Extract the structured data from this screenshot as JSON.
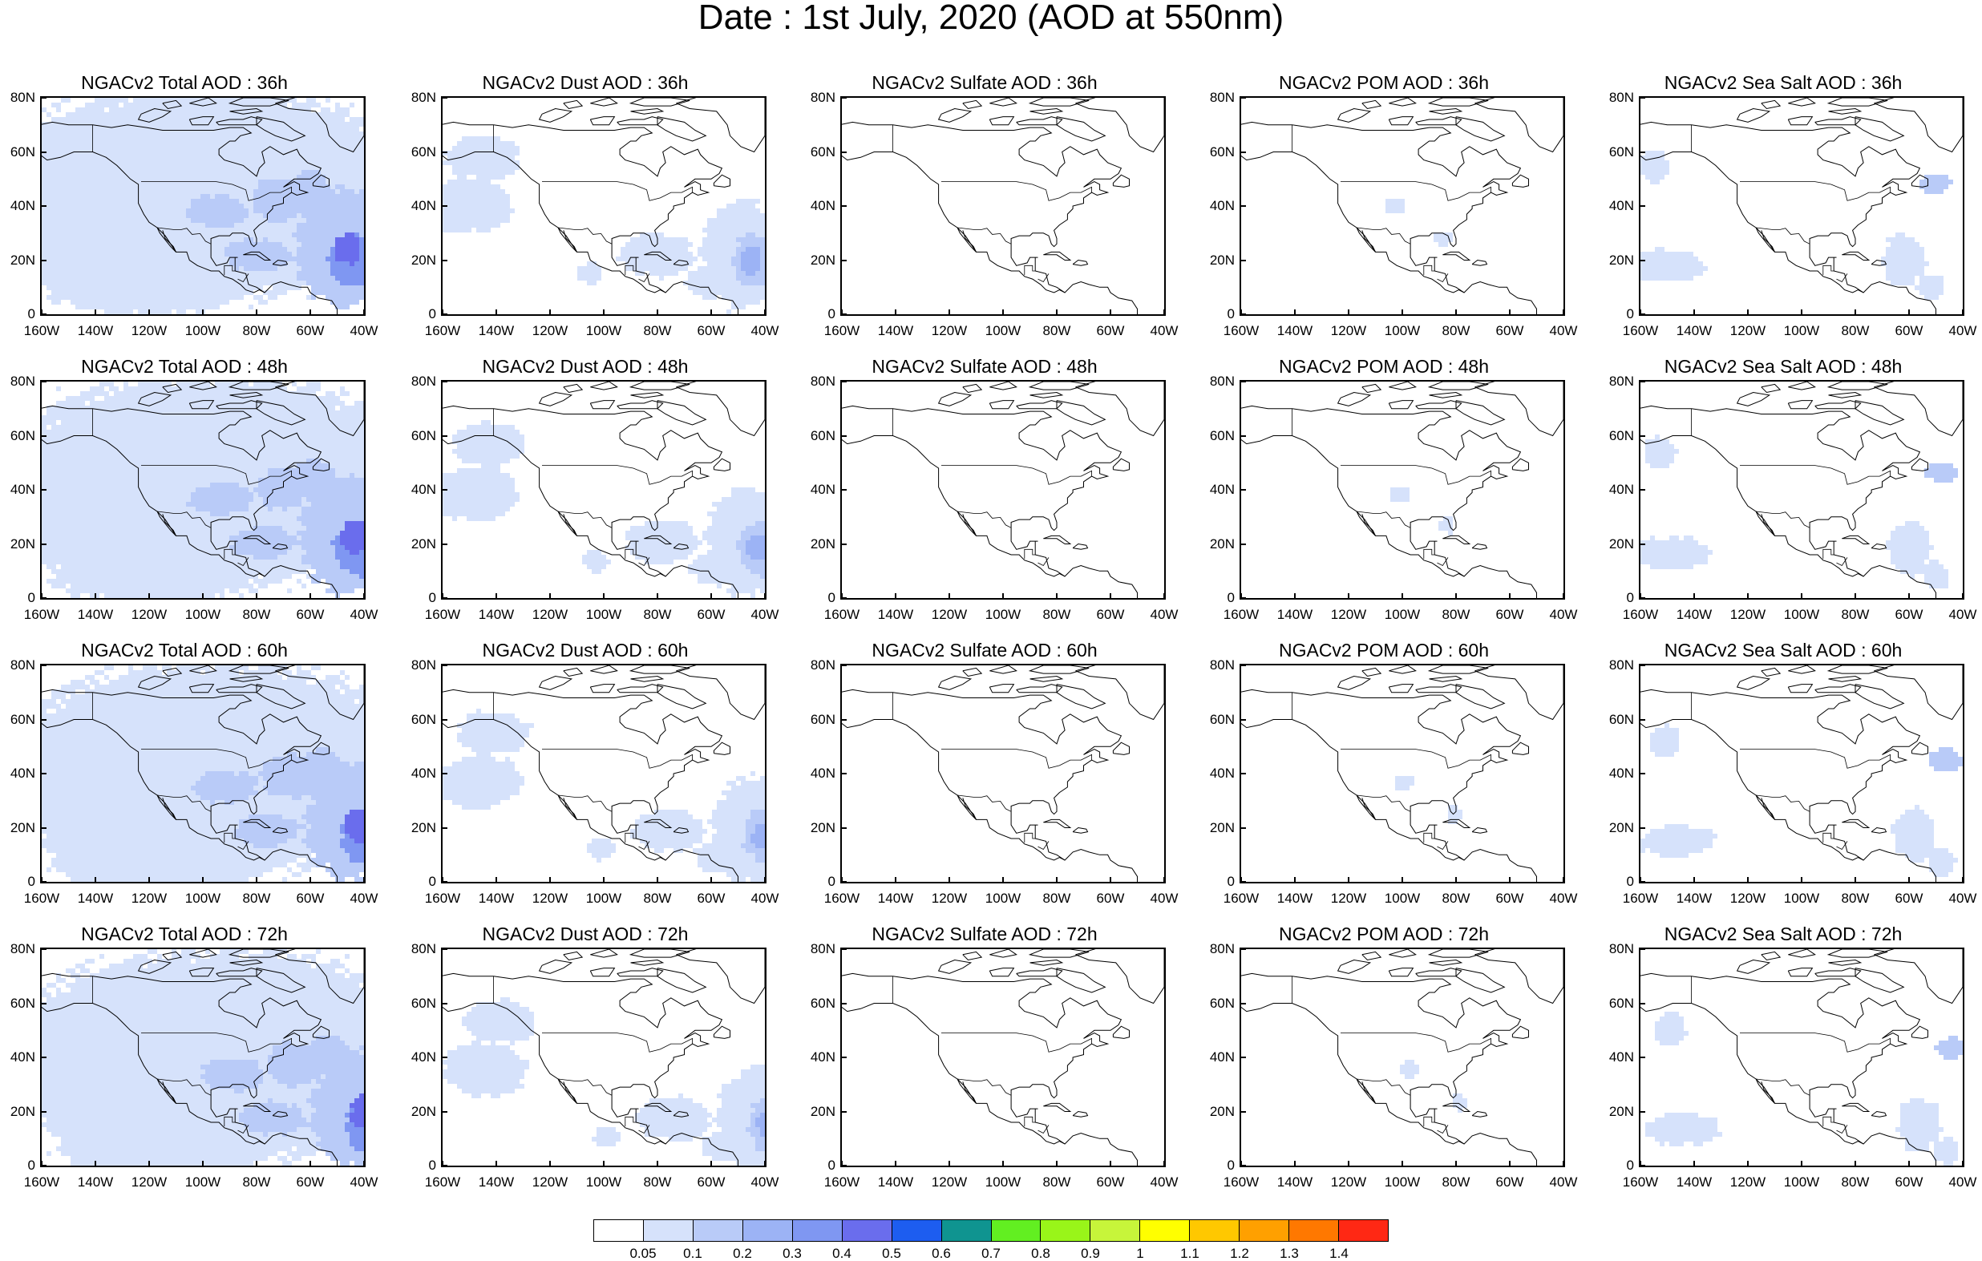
{
  "title": "Date : 1st July, 2020 (AOD at 550nm)",
  "panels": [
    {
      "title": "NGACv2 Total AOD : 36h",
      "row": 0,
      "col": 0,
      "species": "total"
    },
    {
      "title": "NGACv2 Dust AOD : 36h",
      "row": 0,
      "col": 1,
      "species": "dust"
    },
    {
      "title": "NGACv2 Sulfate AOD : 36h",
      "row": 0,
      "col": 2,
      "species": "sulfate"
    },
    {
      "title": "NGACv2 POM AOD : 36h",
      "row": 0,
      "col": 3,
      "species": "pom"
    },
    {
      "title": "NGACv2 Sea Salt AOD : 36h",
      "row": 0,
      "col": 4,
      "species": "seasalt"
    },
    {
      "title": "NGACv2 Total AOD : 48h",
      "row": 1,
      "col": 0,
      "species": "total"
    },
    {
      "title": "NGACv2 Dust AOD : 48h",
      "row": 1,
      "col": 1,
      "species": "dust"
    },
    {
      "title": "NGACv2 Sulfate AOD : 48h",
      "row": 1,
      "col": 2,
      "species": "sulfate"
    },
    {
      "title": "NGACv2 POM AOD : 48h",
      "row": 1,
      "col": 3,
      "species": "pom"
    },
    {
      "title": "NGACv2 Sea Salt AOD : 48h",
      "row": 1,
      "col": 4,
      "species": "seasalt"
    },
    {
      "title": "NGACv2 Total AOD : 60h",
      "row": 2,
      "col": 0,
      "species": "total"
    },
    {
      "title": "NGACv2 Dust AOD : 60h",
      "row": 2,
      "col": 1,
      "species": "dust"
    },
    {
      "title": "NGACv2 Sulfate AOD : 60h",
      "row": 2,
      "col": 2,
      "species": "sulfate"
    },
    {
      "title": "NGACv2 POM AOD : 60h",
      "row": 2,
      "col": 3,
      "species": "pom"
    },
    {
      "title": "NGACv2 Sea Salt AOD : 60h",
      "row": 2,
      "col": 4,
      "species": "seasalt"
    },
    {
      "title": "NGACv2 Total AOD : 72h",
      "row": 3,
      "col": 0,
      "species": "total"
    },
    {
      "title": "NGACv2 Dust AOD : 72h",
      "row": 3,
      "col": 1,
      "species": "dust"
    },
    {
      "title": "NGACv2 Sulfate AOD : 72h",
      "row": 3,
      "col": 2,
      "species": "sulfate"
    },
    {
      "title": "NGACv2 POM AOD : 72h",
      "row": 3,
      "col": 3,
      "species": "pom"
    },
    {
      "title": "NGACv2 Sea Salt  AOD : 72h",
      "row": 3,
      "col": 4,
      "species": "seasalt"
    }
  ],
  "axes": {
    "lon_range": [
      -160,
      -40
    ],
    "lat_range": [
      0,
      80
    ],
    "lon_ticks": [
      "160W",
      "140W",
      "120W",
      "100W",
      "80W",
      "60W",
      "40W"
    ],
    "lat_ticks": [
      "0",
      "20N",
      "40N",
      "60N",
      "80N"
    ]
  },
  "colorbar": {
    "colors": [
      "#ffffff",
      "#d6e2fb",
      "#b9cbf8",
      "#9cb3f5",
      "#7f97f2",
      "#6a6ded",
      "#1d5df0",
      "#0f9490",
      "#62ef21",
      "#99f519",
      "#c7f53a",
      "#ffff00",
      "#ffc800",
      "#ffa000",
      "#ff7800",
      "#ff2814"
    ],
    "labels": [
      "0.05",
      "0.1",
      "0.2",
      "0.3",
      "0.4",
      "0.5",
      "0.6",
      "0.7",
      "0.8",
      "0.9",
      "1",
      "1.1",
      "1.2",
      "1.3",
      "1.4"
    ]
  }
}
